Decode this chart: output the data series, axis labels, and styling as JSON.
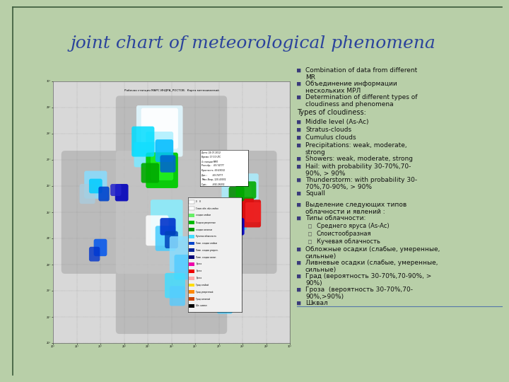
{
  "title": "joint chart of meteorological phenomena",
  "title_color": "#2b439c",
  "title_fontsize": 18,
  "bg_color": "#b8cfa8",
  "border_color": "#3a5a3a",
  "bullet_color": "#3a3a7a",
  "bullet_items_en": [
    "Combination of data from different\nMR",
    "Объединение информации\nнескольких МРЛ",
    "Determination of different types of\ncloudiness and phenomena"
  ],
  "types_heading": "Types of cloudiness:",
  "types_items": [
    "Middle level (As-Ac)",
    "Stratus-clouds",
    "Cumulus clouds",
    "Precipitations: weak, moderate,\nstrong",
    "Showers: weak, moderate, strong",
    "Hail: with probability 30-70%,70-\n90%, > 90%",
    "Thunderstorm: with probability 30-\n70%,70-90%, > 90%",
    "Squall"
  ],
  "bullet_items_ru": [
    "Выделение следующих типов\nоблачности и явлений :",
    "Типы облачности:"
  ],
  "sub_items_ru": [
    "Среднего яруса (As-Ac)",
    "Слоистообразная",
    "Кучевая облачность"
  ],
  "bullet_items_ru2": [
    "Обложные осадки (слабые, умеренные,\nсильные)",
    "Ливневые осадки (слабые, умеренные,\nсильные)",
    "Град (вероятность 30-70%,70-90%, >\n90%)",
    "Гроза  (вероятность 30-70%,70-\n90%,>90%)",
    "Шквал"
  ]
}
